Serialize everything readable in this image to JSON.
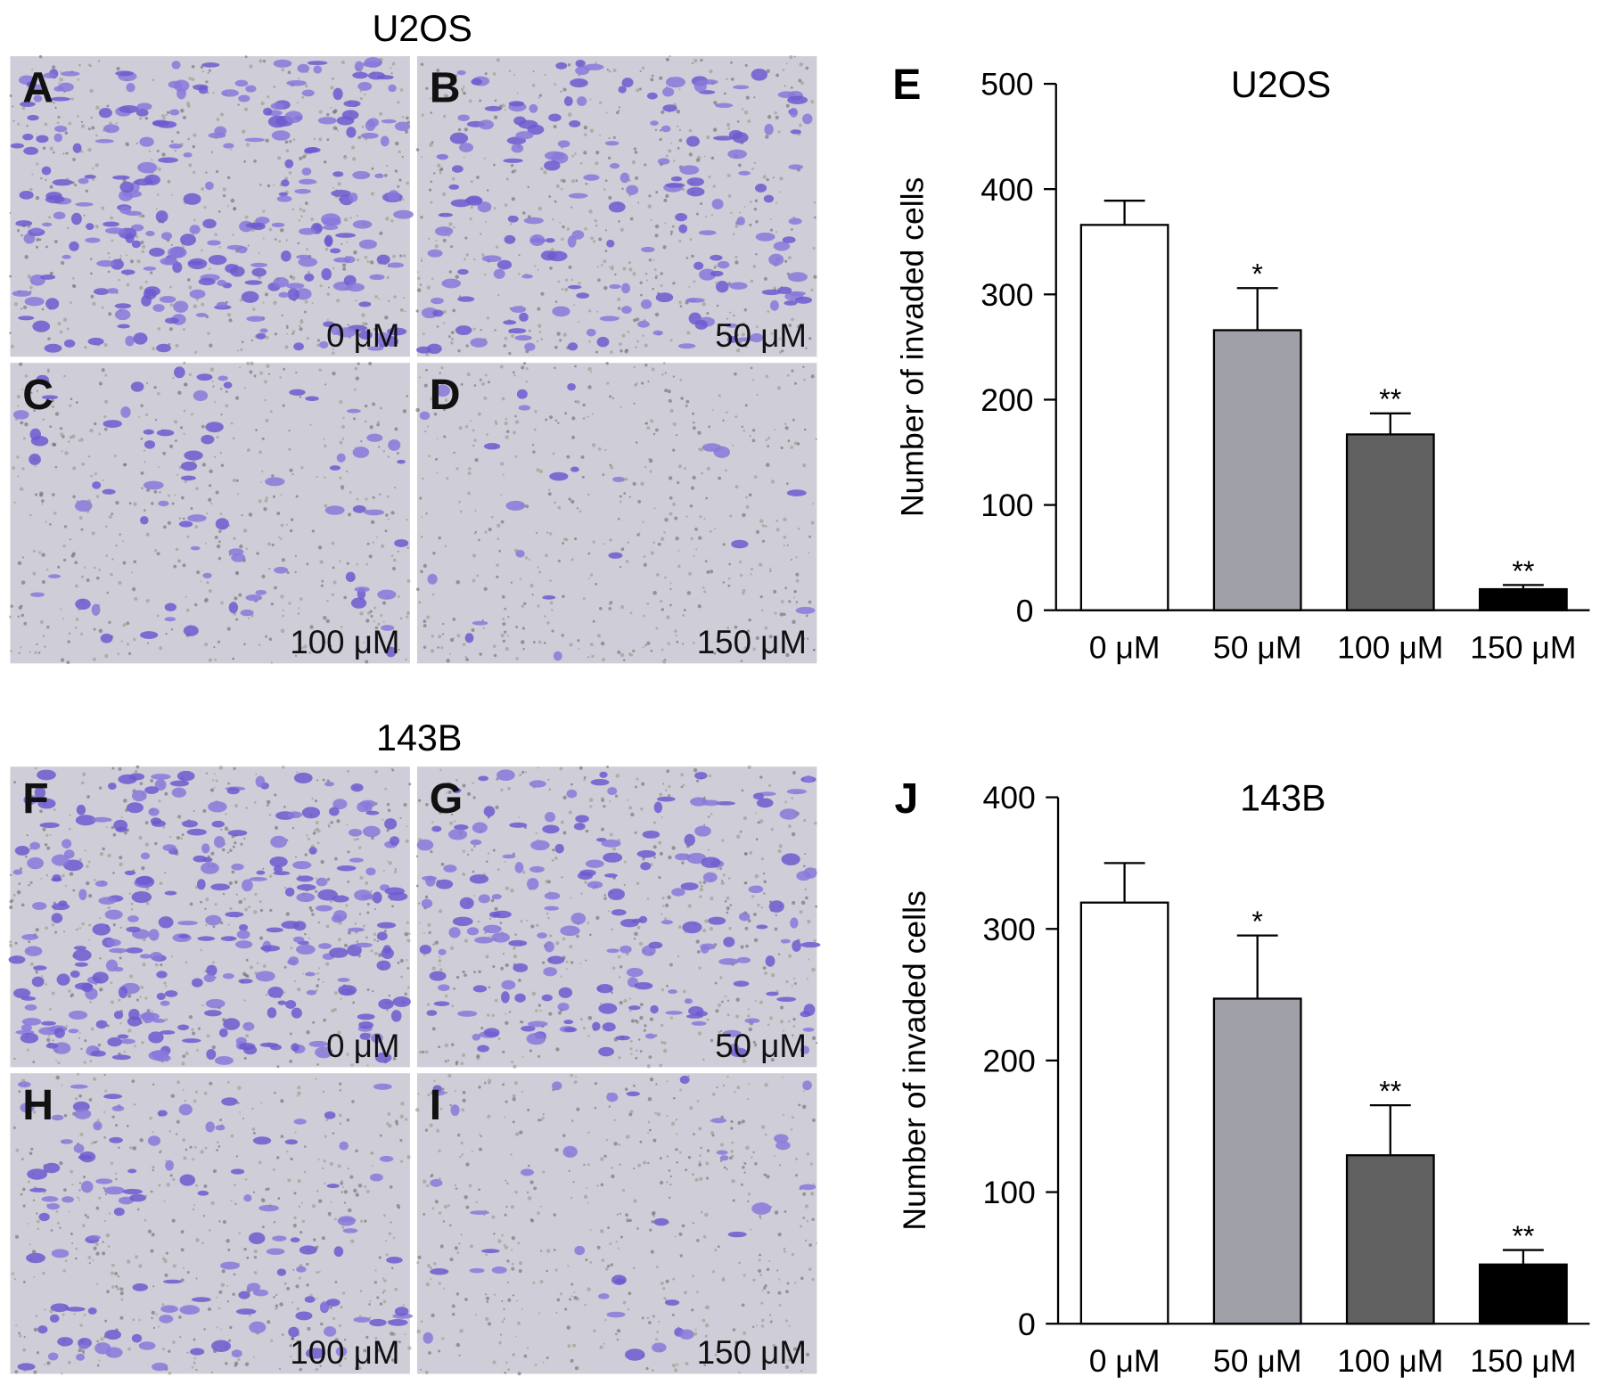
{
  "micrographs": [
    {
      "title": "U2OS",
      "panels": [
        {
          "letter": "A",
          "label": "0 μM"
        },
        {
          "letter": "B",
          "label": "50 μM"
        },
        {
          "letter": "C",
          "label": "100 μM"
        },
        {
          "letter": "D",
          "label": "150 μM"
        }
      ]
    },
    {
      "title": "143B",
      "panels": [
        {
          "letter": "F",
          "label": "0 μM"
        },
        {
          "letter": "G",
          "label": "50 μM"
        },
        {
          "letter": "H",
          "label": "100 μM"
        },
        {
          "letter": "I",
          "label": "150 μM"
        }
      ]
    }
  ],
  "chart_data": [
    {
      "type": "bar",
      "panel_label": "E",
      "title": "U2OS",
      "ylabel": "Number of invaded cells",
      "categories": [
        "0 μM",
        "50 μM",
        "100 μM",
        "150 μM"
      ],
      "values": [
        366,
        266,
        167,
        20
      ],
      "errors": [
        23,
        40,
        20,
        4
      ],
      "significance": [
        null,
        "*",
        "**",
        "**"
      ],
      "colors": [
        "#ffffff",
        "#a0a0a8",
        "#606060",
        "#000000"
      ],
      "ylim": [
        0,
        500
      ],
      "yticks": [
        0,
        100,
        200,
        300,
        400,
        500
      ]
    },
    {
      "type": "bar",
      "panel_label": "J",
      "title": "143B",
      "ylabel": "Number of invaded cells",
      "categories": [
        "0 μM",
        "50 μM",
        "100 μM",
        "150 μM"
      ],
      "values": [
        320,
        247,
        128,
        45
      ],
      "errors": [
        30,
        48,
        38,
        11
      ],
      "significance": [
        null,
        "*",
        "**",
        "**"
      ],
      "colors": [
        "#ffffff",
        "#a0a0a8",
        "#606060",
        "#000000"
      ],
      "ylim": [
        0,
        400
      ],
      "yticks": [
        0,
        100,
        200,
        300,
        400
      ]
    }
  ]
}
